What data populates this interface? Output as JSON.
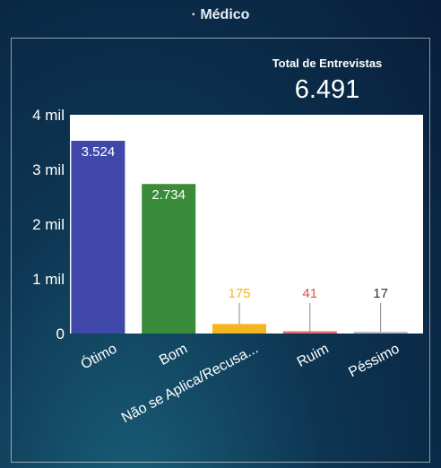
{
  "header": {
    "title": "· Médico"
  },
  "total": {
    "label": "Total de Entrevistas",
    "value": "6.491"
  },
  "chart_data": {
    "type": "bar",
    "categories": [
      "Ótimo",
      "Bom",
      "Não se Aplica/Recusa...",
      "Ruim",
      "Péssimo"
    ],
    "values": [
      3524,
      2734,
      175,
      41,
      17
    ],
    "value_labels": [
      "3.524",
      "2.734",
      "175",
      "41",
      "17"
    ],
    "colors": [
      "#3f48a8",
      "#3a8c3a",
      "#f5b51f",
      "#e26a6a",
      "#b9bcc9"
    ],
    "label_colors": [
      "#ffffff",
      "#ffffff",
      "#f5b51f",
      "#d9534f",
      "#333333"
    ],
    "ylim": [
      0,
      4000
    ],
    "yticks": [
      0,
      1000,
      2000,
      3000,
      4000
    ],
    "ytick_labels": [
      "0",
      "1 mil",
      "2 mil",
      "3 mil",
      "4 mil"
    ],
    "grid": false,
    "plot_background": "#ffffff"
  }
}
